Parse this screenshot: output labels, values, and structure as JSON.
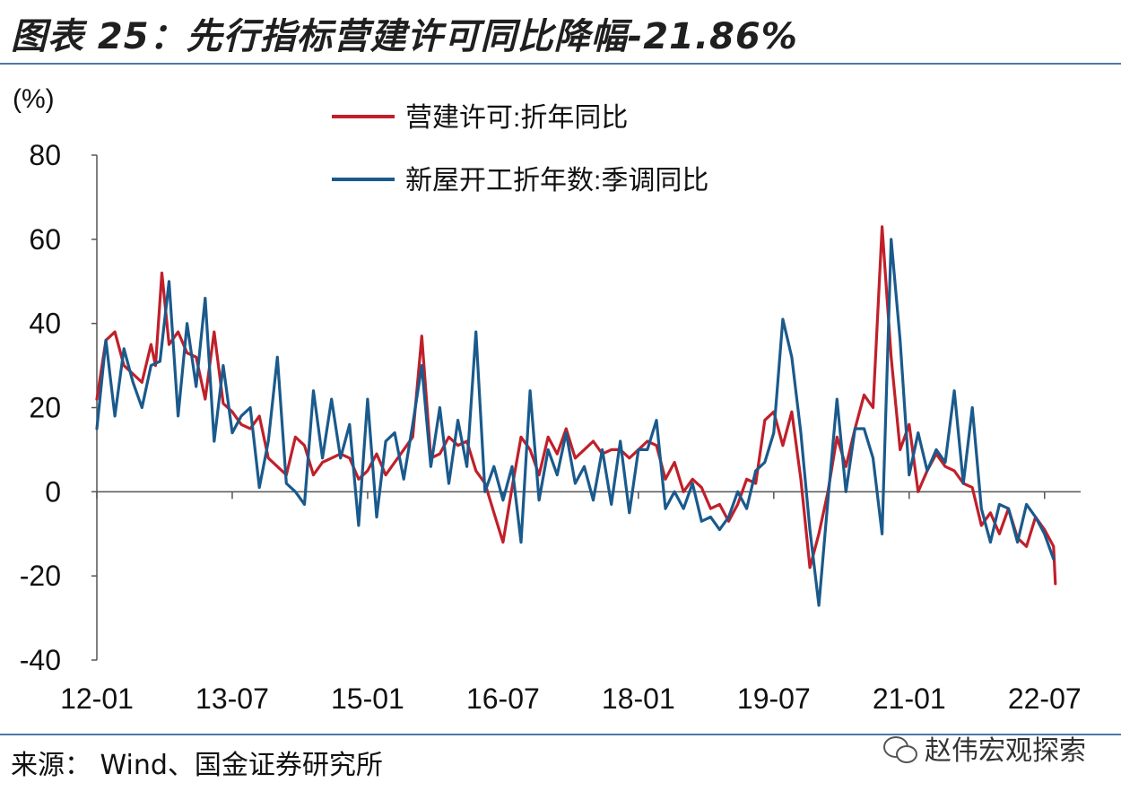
{
  "header": {
    "title": "图表 25：先行指标营建许可同比降幅-21.86%"
  },
  "footer": {
    "source": "来源： Wind、国金证券研究所",
    "watermark": "赵伟宏观探索"
  },
  "colors": {
    "permits": "#c0202a",
    "starts": "#1a5a8c",
    "rule": "#4a78a8"
  },
  "chart_data": {
    "type": "line",
    "ylabel": "(%)",
    "ylim": [
      -40,
      80
    ],
    "yticks": [
      "80",
      "60",
      "40",
      "20",
      "0",
      "-20",
      "-40"
    ],
    "xlim": [
      2012.0,
      2022.9
    ],
    "xticks": [
      {
        "label": "12-01",
        "x": 2012.0
      },
      {
        "label": "13-07",
        "x": 2013.5
      },
      {
        "label": "15-01",
        "x": 2015.0
      },
      {
        "label": "16-07",
        "x": 2016.5
      },
      {
        "label": "18-01",
        "x": 2018.0
      },
      {
        "label": "19-07",
        "x": 2019.5
      },
      {
        "label": "21-01",
        "x": 2021.0
      },
      {
        "label": "22-07",
        "x": 2022.5
      }
    ],
    "legend_position": "top-center",
    "series": [
      {
        "name": "营建许可:折年同比",
        "points": [
          [
            2012.0,
            22
          ],
          [
            2012.1,
            36
          ],
          [
            2012.2,
            38
          ],
          [
            2012.3,
            30
          ],
          [
            2012.4,
            28
          ],
          [
            2012.5,
            26
          ],
          [
            2012.6,
            35
          ],
          [
            2012.65,
            30
          ],
          [
            2012.72,
            52
          ],
          [
            2012.8,
            35
          ],
          [
            2012.9,
            38
          ],
          [
            2013.0,
            33
          ],
          [
            2013.1,
            32
          ],
          [
            2013.2,
            22
          ],
          [
            2013.3,
            38
          ],
          [
            2013.4,
            21
          ],
          [
            2013.5,
            19
          ],
          [
            2013.6,
            16
          ],
          [
            2013.7,
            15
          ],
          [
            2013.8,
            18
          ],
          [
            2013.9,
            8
          ],
          [
            2014.0,
            6
          ],
          [
            2014.1,
            4
          ],
          [
            2014.2,
            13
          ],
          [
            2014.3,
            11
          ],
          [
            2014.4,
            4
          ],
          [
            2014.5,
            7
          ],
          [
            2014.6,
            8
          ],
          [
            2014.7,
            9
          ],
          [
            2014.8,
            8
          ],
          [
            2014.9,
            3
          ],
          [
            2015.0,
            5
          ],
          [
            2015.1,
            9
          ],
          [
            2015.2,
            4
          ],
          [
            2015.3,
            7
          ],
          [
            2015.4,
            10
          ],
          [
            2015.5,
            13
          ],
          [
            2015.6,
            37
          ],
          [
            2015.7,
            8
          ],
          [
            2015.8,
            9
          ],
          [
            2015.9,
            13
          ],
          [
            2016.0,
            11
          ],
          [
            2016.1,
            12
          ],
          [
            2016.2,
            5
          ],
          [
            2016.3,
            2
          ],
          [
            2016.4,
            -5
          ],
          [
            2016.5,
            -12
          ],
          [
            2016.6,
            1
          ],
          [
            2016.7,
            13
          ],
          [
            2016.8,
            10
          ],
          [
            2016.9,
            4
          ],
          [
            2017.0,
            13
          ],
          [
            2017.1,
            9
          ],
          [
            2017.2,
            15
          ],
          [
            2017.3,
            8
          ],
          [
            2017.4,
            10
          ],
          [
            2017.5,
            12
          ],
          [
            2017.6,
            9
          ],
          [
            2017.7,
            10
          ],
          [
            2017.8,
            10
          ],
          [
            2017.9,
            8
          ],
          [
            2018.0,
            10
          ],
          [
            2018.1,
            12
          ],
          [
            2018.2,
            11
          ],
          [
            2018.3,
            3
          ],
          [
            2018.4,
            7
          ],
          [
            2018.5,
            0
          ],
          [
            2018.6,
            3
          ],
          [
            2018.7,
            1
          ],
          [
            2018.8,
            -4
          ],
          [
            2018.9,
            -3
          ],
          [
            2019.0,
            -7
          ],
          [
            2019.1,
            -3
          ],
          [
            2019.2,
            3
          ],
          [
            2019.3,
            2
          ],
          [
            2019.4,
            17
          ],
          [
            2019.5,
            19
          ],
          [
            2019.6,
            11
          ],
          [
            2019.7,
            19
          ],
          [
            2019.8,
            3
          ],
          [
            2019.9,
            -18
          ],
          [
            2020.0,
            -10
          ],
          [
            2020.1,
            0
          ],
          [
            2020.2,
            13
          ],
          [
            2020.3,
            6
          ],
          [
            2020.4,
            15
          ],
          [
            2020.5,
            23
          ],
          [
            2020.6,
            20
          ],
          [
            2020.7,
            63
          ],
          [
            2020.8,
            32
          ],
          [
            2020.9,
            10
          ],
          [
            2021.0,
            16
          ],
          [
            2021.1,
            0
          ],
          [
            2021.2,
            5
          ],
          [
            2021.3,
            9
          ],
          [
            2021.4,
            6
          ],
          [
            2021.5,
            5
          ],
          [
            2021.6,
            2
          ],
          [
            2021.7,
            1
          ],
          [
            2021.8,
            -8
          ],
          [
            2021.9,
            -5
          ],
          [
            2022.0,
            -10
          ],
          [
            2022.1,
            -4
          ],
          [
            2022.2,
            -11
          ],
          [
            2022.3,
            -13
          ],
          [
            2022.4,
            -6
          ],
          [
            2022.5,
            -9
          ],
          [
            2022.6,
            -13
          ],
          [
            2022.62,
            -21.86
          ]
        ]
      },
      {
        "name": "新屋开工折年数:季调同比",
        "points": [
          [
            2012.0,
            15
          ],
          [
            2012.1,
            36
          ],
          [
            2012.2,
            18
          ],
          [
            2012.3,
            34
          ],
          [
            2012.4,
            26
          ],
          [
            2012.5,
            20
          ],
          [
            2012.6,
            30
          ],
          [
            2012.7,
            31
          ],
          [
            2012.8,
            50
          ],
          [
            2012.9,
            18
          ],
          [
            2013.0,
            40
          ],
          [
            2013.1,
            25
          ],
          [
            2013.2,
            46
          ],
          [
            2013.3,
            12
          ],
          [
            2013.4,
            30
          ],
          [
            2013.5,
            14
          ],
          [
            2013.6,
            18
          ],
          [
            2013.7,
            20
          ],
          [
            2013.8,
            1
          ],
          [
            2013.9,
            12
          ],
          [
            2014.0,
            32
          ],
          [
            2014.1,
            2
          ],
          [
            2014.2,
            0
          ],
          [
            2014.3,
            -3
          ],
          [
            2014.4,
            24
          ],
          [
            2014.5,
            8
          ],
          [
            2014.6,
            22
          ],
          [
            2014.7,
            8
          ],
          [
            2014.8,
            16
          ],
          [
            2014.9,
            -8
          ],
          [
            2015.0,
            22
          ],
          [
            2015.1,
            -6
          ],
          [
            2015.2,
            12
          ],
          [
            2015.3,
            14
          ],
          [
            2015.4,
            3
          ],
          [
            2015.5,
            16
          ],
          [
            2015.6,
            30
          ],
          [
            2015.7,
            6
          ],
          [
            2015.8,
            20
          ],
          [
            2015.9,
            2
          ],
          [
            2016.0,
            17
          ],
          [
            2016.1,
            6
          ],
          [
            2016.2,
            38
          ],
          [
            2016.3,
            0
          ],
          [
            2016.4,
            6
          ],
          [
            2016.5,
            -2
          ],
          [
            2016.6,
            6
          ],
          [
            2016.7,
            -12
          ],
          [
            2016.8,
            24
          ],
          [
            2016.9,
            -2
          ],
          [
            2017.0,
            10
          ],
          [
            2017.1,
            4
          ],
          [
            2017.2,
            14
          ],
          [
            2017.3,
            2
          ],
          [
            2017.4,
            6
          ],
          [
            2017.5,
            -2
          ],
          [
            2017.6,
            10
          ],
          [
            2017.7,
            -3
          ],
          [
            2017.8,
            12
          ],
          [
            2017.9,
            -5
          ],
          [
            2018.0,
            10
          ],
          [
            2018.1,
            10
          ],
          [
            2018.2,
            17
          ],
          [
            2018.3,
            -4
          ],
          [
            2018.4,
            0
          ],
          [
            2018.5,
            -4
          ],
          [
            2018.6,
            2
          ],
          [
            2018.7,
            -7
          ],
          [
            2018.8,
            -6
          ],
          [
            2018.9,
            -9
          ],
          [
            2019.0,
            -6
          ],
          [
            2019.1,
            0
          ],
          [
            2019.2,
            -4
          ],
          [
            2019.3,
            5
          ],
          [
            2019.4,
            7
          ],
          [
            2019.5,
            14
          ],
          [
            2019.6,
            41
          ],
          [
            2019.7,
            32
          ],
          [
            2019.8,
            14
          ],
          [
            2019.9,
            -9
          ],
          [
            2020.0,
            -27
          ],
          [
            2020.1,
            -2
          ],
          [
            2020.2,
            22
          ],
          [
            2020.3,
            0
          ],
          [
            2020.4,
            15
          ],
          [
            2020.5,
            15
          ],
          [
            2020.6,
            8
          ],
          [
            2020.7,
            -10
          ],
          [
            2020.8,
            60
          ],
          [
            2020.9,
            36
          ],
          [
            2021.0,
            4
          ],
          [
            2021.1,
            14
          ],
          [
            2021.2,
            5
          ],
          [
            2021.3,
            10
          ],
          [
            2021.4,
            7
          ],
          [
            2021.5,
            24
          ],
          [
            2021.6,
            2
          ],
          [
            2021.7,
            20
          ],
          [
            2021.8,
            -4
          ],
          [
            2021.9,
            -12
          ],
          [
            2022.0,
            -3
          ],
          [
            2022.1,
            -4
          ],
          [
            2022.2,
            -12
          ],
          [
            2022.3,
            -3
          ],
          [
            2022.4,
            -6
          ],
          [
            2022.5,
            -10
          ],
          [
            2022.6,
            -16
          ]
        ]
      }
    ]
  }
}
